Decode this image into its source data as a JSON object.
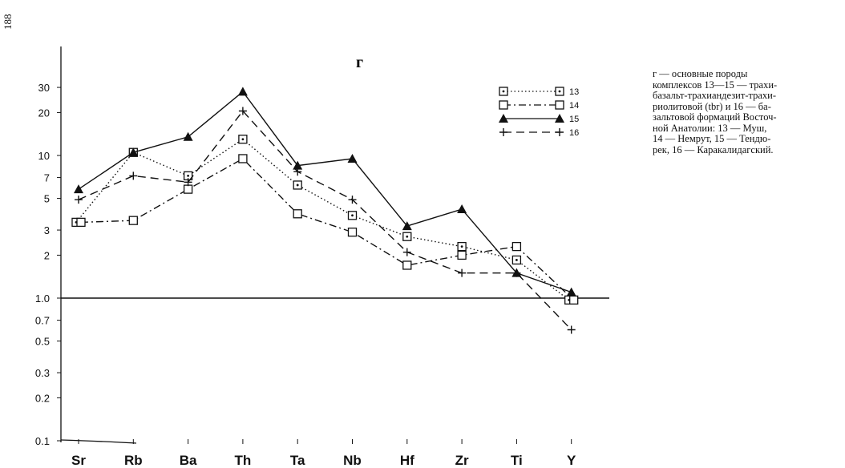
{
  "page": {
    "number": "188"
  },
  "caption": {
    "lines": [
      "г — основные породы",
      "комплексов 13—15 — трахи-",
      "базальт-трахиандезит-трахи-",
      "риолитовой (tbr) и 16 — ба-",
      "зальтовой формаций Восточ-",
      "ной Анатолии: 13 — Муш,",
      "14 — Немрут, 15 — Тендю-",
      "рек, 16 — Каракалидагский."
    ]
  },
  "colors": {
    "ink": "#111111",
    "background": "#ffffff"
  },
  "chart_data": {
    "type": "line",
    "panel_label": "г",
    "y_scale": "log",
    "ylim": [
      0.1,
      50
    ],
    "y_ticks": [
      {
        "value": 30,
        "label": "30"
      },
      {
        "value": 20,
        "label": "20"
      },
      {
        "value": 10,
        "label": "10"
      },
      {
        "value": 7,
        "label": "7"
      },
      {
        "value": 5,
        "label": "5"
      },
      {
        "value": 3,
        "label": "3"
      },
      {
        "value": 2,
        "label": "2"
      },
      {
        "value": 1.0,
        "label": "1.0"
      },
      {
        "value": 0.7,
        "label": "0.7"
      },
      {
        "value": 0.5,
        "label": "0.5"
      },
      {
        "value": 0.3,
        "label": "0.3"
      },
      {
        "value": 0.2,
        "label": "0.2"
      },
      {
        "value": 0.1,
        "label": "0.1"
      }
    ],
    "reference_line": 1.0,
    "categories": [
      "Sr",
      "Rb",
      "Ba",
      "Th",
      "Ta",
      "Nb",
      "Hf",
      "Zr",
      "Ti",
      "Y"
    ],
    "series": [
      {
        "name": "13",
        "style": "dotted",
        "marker": "square-dot",
        "values": [
          3.4,
          10.5,
          7.2,
          13,
          6.2,
          3.8,
          2.7,
          2.3,
          1.85,
          0.97
        ]
      },
      {
        "name": "14",
        "style": "dash-dot",
        "marker": "square",
        "values": [
          3.4,
          3.5,
          5.8,
          9.5,
          3.9,
          2.9,
          1.7,
          2.0,
          2.3,
          0.97
        ]
      },
      {
        "name": "15",
        "style": "solid",
        "marker": "triangle",
        "values": [
          5.8,
          10.5,
          13.5,
          28,
          8.5,
          9.5,
          3.2,
          4.2,
          1.5,
          1.1
        ]
      },
      {
        "name": "16",
        "style": "dashed",
        "marker": "plus",
        "values": [
          4.9,
          7.2,
          6.5,
          20.5,
          7.7,
          4.9,
          2.1,
          1.5,
          1.5,
          0.6
        ]
      }
    ],
    "legend_position": "top-right"
  }
}
